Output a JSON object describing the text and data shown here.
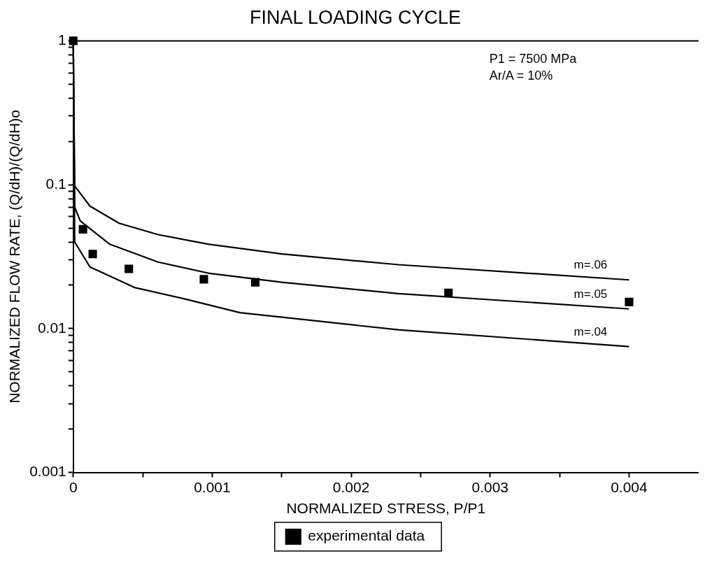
{
  "chart_data": {
    "type": "line",
    "title": "FINAL LOADING CYCLE",
    "xlabel": "NORMALIZED STRESS, P/P1",
    "ylabel": "NORMALIZED FLOW RATE, (Q/dH)/(Q/dH)o",
    "annotations": [
      "P1 = 7500 MPa",
      "Ar/A = 10%"
    ],
    "xlim": [
      0,
      0.0045
    ],
    "xticks": [
      0,
      {
        "value": 0.0005,
        "label": null
      },
      0.001,
      {
        "value": 0.0015,
        "label": null
      },
      0.002,
      {
        "value": 0.0025,
        "label": null
      },
      0.003,
      {
        "value": 0.0035,
        "label": null
      },
      0.004
    ],
    "ylim": [
      0.001,
      1
    ],
    "yticks": [
      0.001,
      {
        "value": 0.002,
        "label": null
      },
      {
        "value": 0.003,
        "label": null
      },
      {
        "value": 0.004,
        "label": null
      },
      {
        "value": 0.005,
        "label": null
      },
      {
        "value": 0.006,
        "label": null
      },
      {
        "value": 0.007,
        "label": null
      },
      {
        "value": 0.008,
        "label": null
      },
      {
        "value": 0.009,
        "label": null
      },
      0.01,
      {
        "value": 0.02,
        "label": null
      },
      {
        "value": 0.03,
        "label": null
      },
      {
        "value": 0.04,
        "label": null
      },
      {
        "value": 0.05,
        "label": null
      },
      {
        "value": 0.06,
        "label": null
      },
      {
        "value": 0.07,
        "label": null
      },
      {
        "value": 0.08,
        "label": null
      },
      {
        "value": 0.09,
        "label": null
      },
      0.1,
      {
        "value": 0.2,
        "label": null
      },
      {
        "value": 0.3,
        "label": null
      },
      {
        "value": 0.4,
        "label": null
      },
      {
        "value": 0.5,
        "label": null
      },
      {
        "value": 0.6,
        "label": null
      },
      {
        "value": 0.7,
        "label": null
      },
      {
        "value": 0.8,
        "label": null
      },
      {
        "value": 0.9,
        "label": null
      },
      1
    ],
    "log": "y",
    "grid": false,
    "legend": "bottom",
    "marker": "none",
    "line_style": "solid",
    "series": [
      {
        "name": "m=.06",
        "color": "#000000",
        "x": [
          0,
          1e-05,
          0.00012,
          0.00033,
          0.00061,
          0.00097,
          0.0015,
          0.00234,
          0.004
        ],
        "values": [
          1,
          0.098,
          0.071,
          0.054,
          0.045,
          0.0386,
          0.033,
          0.0278,
          0.0218
        ]
      },
      {
        "name": "m=.05",
        "color": "#000000",
        "x": [
          0,
          1e-05,
          5e-05,
          0.00026,
          0.00061,
          0.00097,
          0.0015,
          0.00234,
          0.004
        ],
        "values": [
          1,
          0.07,
          0.056,
          0.0387,
          0.029,
          0.0243,
          0.021,
          0.0175,
          0.0137
        ]
      },
      {
        "name": "m=.04",
        "color": "#000000",
        "x": [
          0,
          1e-05,
          0.00012,
          0.00044,
          0.0008,
          0.0012,
          0.00234,
          0.004
        ],
        "values": [
          1,
          0.04,
          0.0268,
          0.0193,
          0.0161,
          0.0129,
          0.0098,
          0.0075
        ]
      },
      {
        "name": "experimental data",
        "type": "scatter",
        "marker": "square",
        "color": "#000000",
        "x": [
          0,
          7e-05,
          0.00014,
          0.0004,
          0.00094,
          0.00131,
          0.0027,
          0.004
        ],
        "values": [
          1,
          0.049,
          0.033,
          0.026,
          0.022,
          0.021,
          0.0177,
          0.0153
        ]
      }
    ]
  }
}
